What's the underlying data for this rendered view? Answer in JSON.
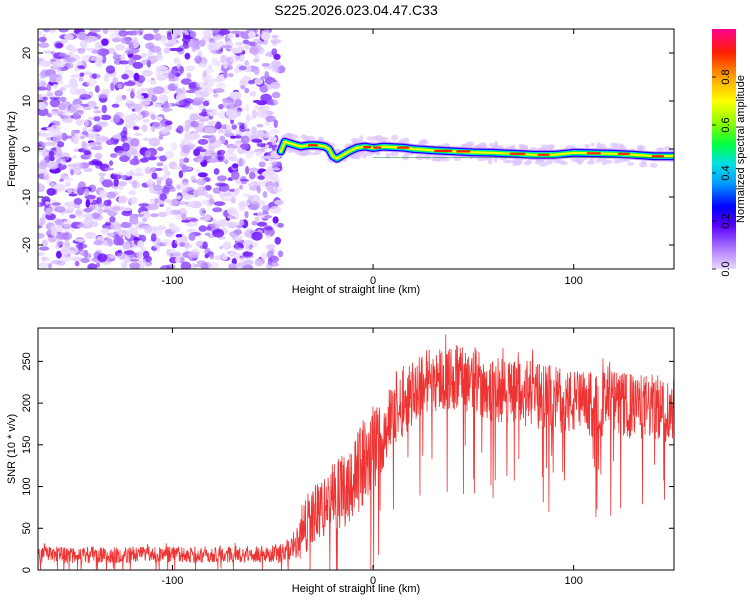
{
  "chart_data": [
    {
      "type": "heatmap",
      "title": "S225.2026.023.04.47.C33",
      "xlabel": "Height of straight line (km)",
      "ylabel": "Frequency (Hz)",
      "xlim": [
        -167,
        150
      ],
      "ylim": [
        -25,
        25
      ],
      "x_ticks": [
        -100,
        0,
        100
      ],
      "x_tick_labels": [
        "-100",
        "0",
        "100"
      ],
      "y_ticks": [
        -20,
        -10,
        0,
        10,
        20
      ],
      "y_tick_labels": [
        "-20",
        "-10",
        "0",
        "10",
        "20"
      ],
      "noise_region_x": [
        -167,
        -46
      ],
      "signal_track": {
        "x": [
          -46,
          -44,
          -40,
          -36,
          -32,
          -28,
          -24,
          -22,
          -20,
          -18,
          -16,
          -12,
          -8,
          -4,
          0,
          5,
          10,
          15,
          20,
          30,
          40,
          50,
          60,
          70,
          80,
          90,
          95,
          100,
          110,
          120,
          130,
          140,
          150
        ],
        "y": [
          -0.5,
          1.5,
          1.0,
          0.5,
          0.8,
          0.8,
          0.5,
          0.0,
          -1.5,
          -2.0,
          -1.5,
          -0.5,
          0.3,
          0.5,
          0.2,
          0.5,
          0.4,
          0.3,
          0.0,
          -0.3,
          -0.5,
          -0.7,
          -0.8,
          -1.0,
          -1.2,
          -1.2,
          -1.0,
          -0.8,
          -0.9,
          -1.0,
          -1.2,
          -1.5,
          -1.5
        ]
      },
      "colorbar": {
        "label": "Normalized spectral amplitude",
        "range": [
          0,
          1
        ],
        "ticks": [
          0.0,
          0.2,
          0.4,
          0.6,
          0.8
        ],
        "tick_labels": [
          "0.0",
          "0.2",
          "0.4",
          "0.6",
          "0.8"
        ],
        "colors": [
          "#c9a6ff",
          "#5a00ff",
          "#0000ff",
          "#00d0ff",
          "#00ff00",
          "#ffff00",
          "#ffa000",
          "#ff0000",
          "#ff0080"
        ]
      }
    },
    {
      "type": "line",
      "xlabel": "Height of straight line (km)",
      "ylabel": "SNR (10 * v/v)",
      "xlim": [
        -167,
        150
      ],
      "ylim": [
        0,
        290
      ],
      "x_ticks": [
        -100,
        0,
        100
      ],
      "x_tick_labels": [
        "-100",
        "0",
        "100"
      ],
      "y_ticks": [
        0,
        50,
        100,
        150,
        200,
        250
      ],
      "y_tick_labels": [
        "0",
        "50",
        "100",
        "150",
        "200",
        "250"
      ],
      "line_color": "#ee3333",
      "series": [
        {
          "name": "SNR",
          "envelope_x": [
            -167,
            -140,
            -100,
            -60,
            -45,
            -38,
            -35,
            -32,
            -28,
            -24,
            -20,
            -15,
            -10,
            -5,
            0,
            5,
            10,
            15,
            20,
            25,
            30,
            40,
            50,
            60,
            70,
            80,
            90,
            100,
            110,
            120,
            130,
            140,
            150
          ],
          "mean_y": [
            18,
            18,
            18,
            19,
            20,
            30,
            45,
            60,
            70,
            75,
            85,
            95,
            110,
            125,
            140,
            165,
            185,
            200,
            215,
            225,
            230,
            230,
            228,
            215,
            215,
            210,
            205,
            200,
            198,
            200,
            195,
            195,
            190
          ],
          "spread": [
            10,
            10,
            10,
            10,
            12,
            20,
            30,
            35,
            35,
            40,
            45,
            45,
            50,
            50,
            50,
            45,
            40,
            40,
            40,
            40,
            40,
            40,
            40,
            40,
            40,
            40,
            40,
            40,
            40,
            40,
            40,
            40,
            40
          ]
        }
      ]
    }
  ]
}
